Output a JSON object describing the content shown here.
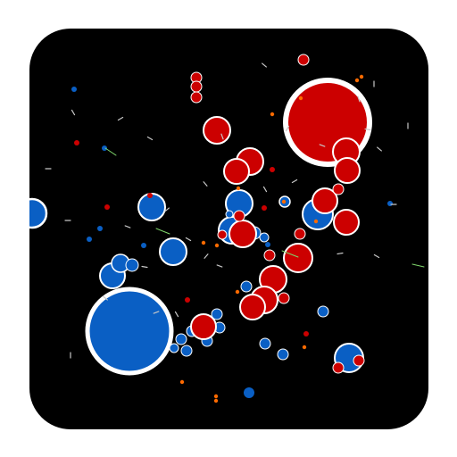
{
  "icon": {
    "name": "particle-cluster-app-icon",
    "background_color": "#000000",
    "team_colors": {
      "red": "#cc0000",
      "blue": "#0a5fc4",
      "outline": "#ffffff",
      "spark": "#ff6a00",
      "debris": "#c8c8c8",
      "trail": "#7fd66b"
    }
  }
}
